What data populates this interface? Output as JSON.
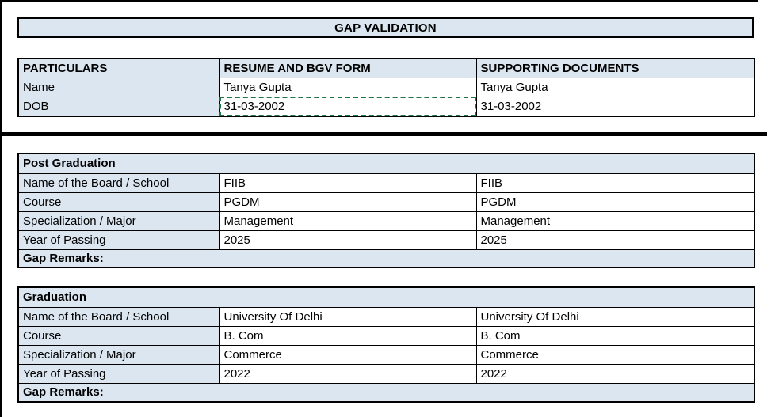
{
  "page": {
    "title": "GAP VALIDATION"
  },
  "colors": {
    "header_fill": "#dce6f1",
    "grid_border": "#000000",
    "selection_marquee": "#217346"
  },
  "personal_table": {
    "headers": [
      "PARTICULARS",
      "RESUME AND BGV FORM",
      "SUPPORTING DOCUMENTS"
    ],
    "rows": [
      {
        "label": "Name",
        "resume": "Tanya Gupta",
        "supporting": "Tanya Gupta"
      },
      {
        "label": "DOB",
        "resume": "31-03-2002",
        "supporting": "31-03-2002"
      }
    ],
    "selected_cell": "DOB resume value"
  },
  "education_tables": [
    {
      "section": "Post Graduation",
      "rows": [
        {
          "label": "Name of the Board / School",
          "resume": "FIIB",
          "supporting": "FIIB"
        },
        {
          "label": "Course",
          "resume": "PGDM",
          "supporting": "PGDM"
        },
        {
          "label": "Specialization / Major",
          "resume": "Management",
          "supporting": "Management"
        },
        {
          "label": "Year of Passing",
          "resume": "2025",
          "supporting": "2025"
        }
      ],
      "footer": "Gap Remarks:"
    },
    {
      "section": "Graduation",
      "rows": [
        {
          "label": "Name of the Board / School",
          "resume": "University Of Delhi",
          "supporting": "University Of Delhi"
        },
        {
          "label": "Course",
          "resume": "B. Com",
          "supporting": "B. Com"
        },
        {
          "label": "Specialization / Major",
          "resume": "Commerce",
          "supporting": "Commerce"
        },
        {
          "label": "Year of Passing",
          "resume": "2022",
          "supporting": "2022"
        }
      ],
      "footer": "Gap Remarks:"
    }
  ]
}
